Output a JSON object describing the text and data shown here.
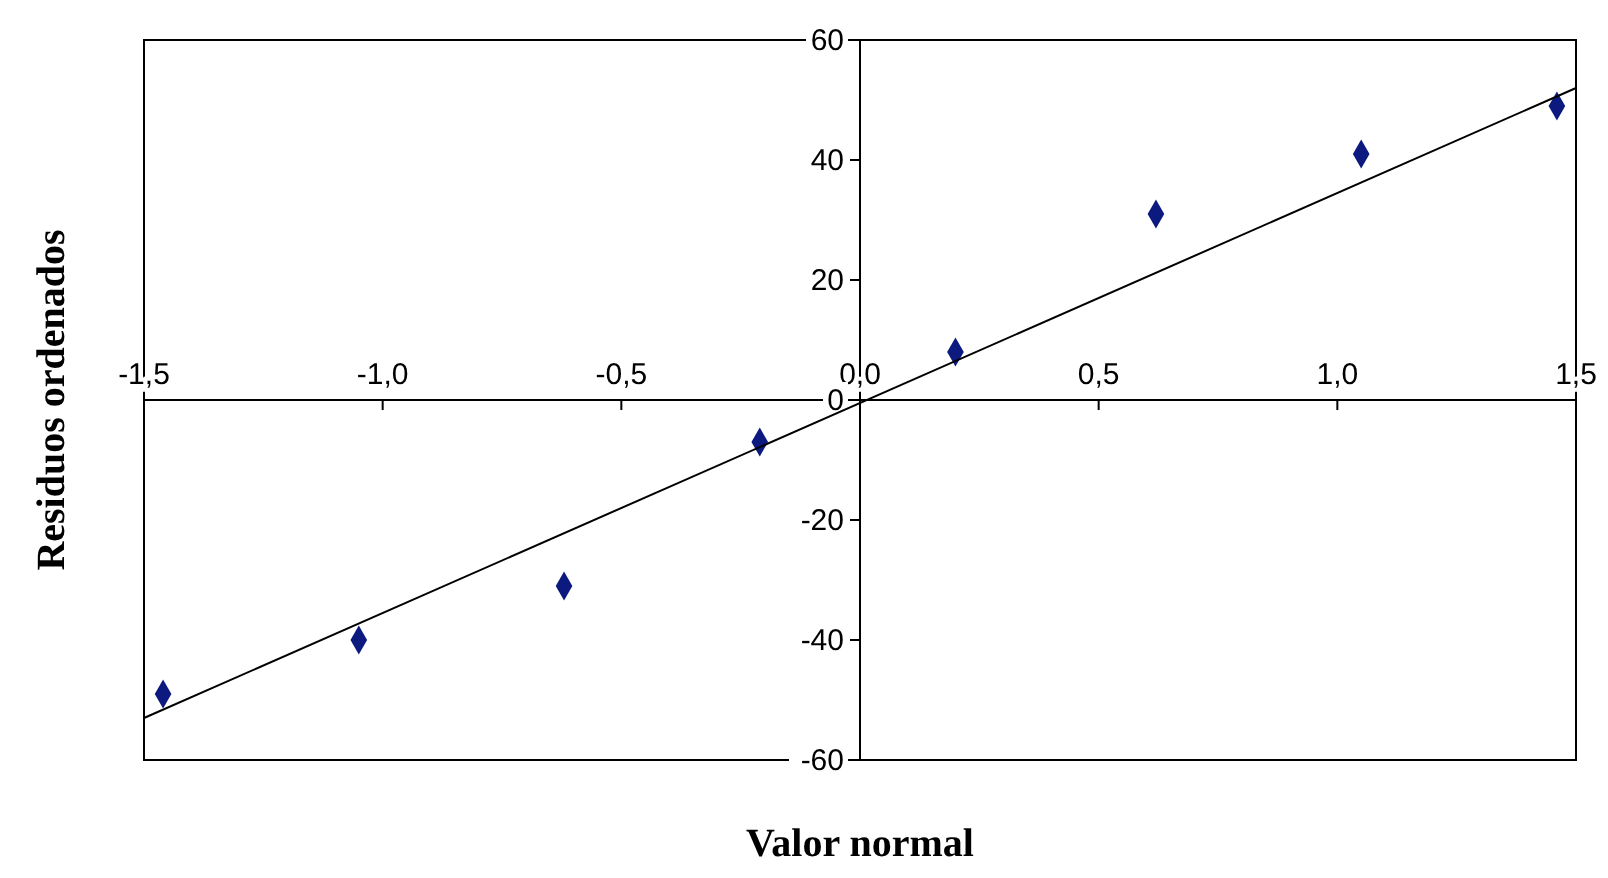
{
  "chart_data": {
    "type": "scatter",
    "xlabel": "Valor normal",
    "ylabel": "Residuos ordenados",
    "xlim": [
      -1.5,
      1.5
    ],
    "ylim": [
      -60,
      60
    ],
    "xticks": [
      {
        "value": -1.5,
        "label": "-1,5"
      },
      {
        "value": -1,
        "label": "-1,0"
      },
      {
        "value": -0.5,
        "label": "-0,5"
      },
      {
        "value": 0,
        "label": "0,0"
      },
      {
        "value": 0.5,
        "label": "0,5"
      },
      {
        "value": 1,
        "label": "1,0"
      },
      {
        "value": 1.5,
        "label": "1,5"
      }
    ],
    "yticks": [
      -60,
      -40,
      -20,
      0,
      20,
      40,
      60
    ],
    "grid": false,
    "marker": "diamond",
    "series": [
      {
        "color": "#0c1a80",
        "x": [
          -1.46,
          -1.05,
          -0.62,
          -0.21,
          0.2,
          0.62,
          1.05,
          1.46
        ],
        "values": [
          -49,
          -40,
          -31,
          -7,
          8,
          31,
          41,
          49
        ]
      },
      {
        "type": "line",
        "color": "#000000",
        "marker": "none",
        "line_style": "solid",
        "x": [
          -1.5,
          1.5
        ],
        "values": [
          -53,
          52
        ]
      }
    ]
  }
}
